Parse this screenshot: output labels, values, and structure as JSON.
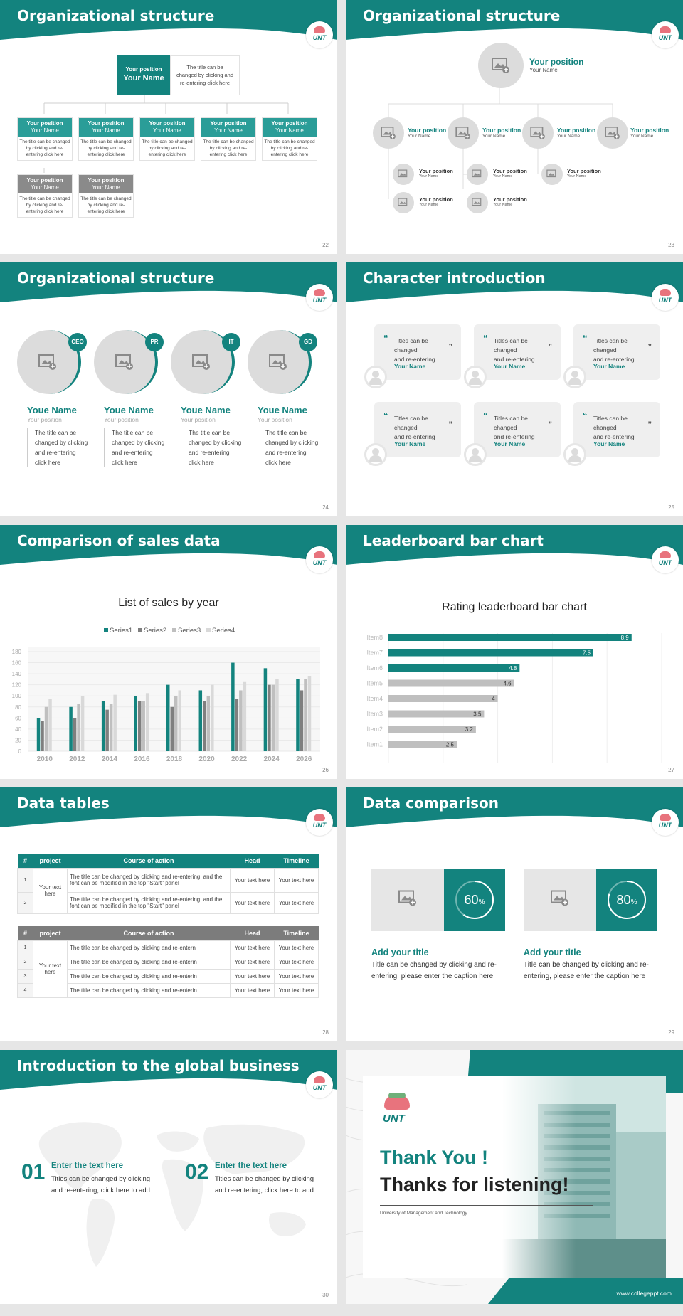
{
  "colors": {
    "teal": "#13837e",
    "band": "#13837e",
    "gray": "#8a8a8a",
    "light": "#c8c8c8"
  },
  "logo_text": "UNT",
  "slides": {
    "s22": {
      "title": "Organizational structure",
      "num": "22",
      "top_box": {
        "role": "Your position",
        "name": "Your Name",
        "desc1": "The title can be",
        "desc2": "changed by clicking and",
        "desc3": "re-entering click here"
      },
      "box_role": "Your position",
      "box_name": "Your Name",
      "box_d1": "The title can be changed",
      "box_d2": "by clicking and re-",
      "box_d3": "entering click here"
    },
    "s23": {
      "title": "Organizational structure",
      "num": "23",
      "top_role": "Your position",
      "top_name": "Your Name",
      "role": "Your position",
      "name": "Your Name"
    },
    "s24": {
      "title": "Organizational structure",
      "num": "24",
      "people": [
        {
          "tag": "CEO",
          "name": "Youe Name",
          "pos": "Your position"
        },
        {
          "tag": "PR",
          "name": "Youe Name",
          "pos": "Your position"
        },
        {
          "tag": "IT",
          "name": "Youe Name",
          "pos": "Your position"
        },
        {
          "tag": "GD",
          "name": "Youe Name",
          "pos": "Your position"
        }
      ],
      "d1": "The title can be",
      "d2": "changed by clicking",
      "d3": "and re-entering",
      "d4": "click here"
    },
    "s25": {
      "title": "Character introduction",
      "num": "25",
      "card_t1": "Titles can be changed",
      "card_t2": "and re-entering",
      "card_name": "Your Name",
      "open_quote": "“",
      "close_quote": "”"
    },
    "s26": {
      "title": "Comparison of sales data",
      "num": "26"
    },
    "s27": {
      "title": "Leaderboard bar chart",
      "num": "27"
    },
    "s28": {
      "title": "Data tables",
      "num": "28",
      "headers": [
        "#",
        "project",
        "Course of action",
        "Head",
        "Timeline"
      ],
      "t1": {
        "project": "Your text here",
        "rows": [
          {
            "idx": "1",
            "action": "The title can be changed by clicking and re-entering, and the font can be modified in the top \"Start\" panel",
            "head": "Your text here",
            "time": "Your text here"
          },
          {
            "idx": "2",
            "action": "The title can be changed by clicking and re-entering, and the font can be modified in the top \"Start\" panel",
            "head": "Your text here",
            "time": "Your text here"
          }
        ]
      },
      "t2": {
        "project": "Your text here",
        "rows": [
          {
            "idx": "1",
            "action": "The title can be changed by clicking and re-entern",
            "head": "Your text here",
            "time": "Your text here"
          },
          {
            "idx": "2",
            "action": "The title can be changed by clicking and re-enterin",
            "head": "Your text here",
            "time": "Your text here"
          },
          {
            "idx": "3",
            "action": "The title can be changed by clicking and re-enterin",
            "head": "Your text here",
            "time": "Your text here"
          },
          {
            "idx": "4",
            "action": "The title can be changed by clicking and re-enterin",
            "head": "Your text here",
            "time": "Your text here"
          }
        ]
      }
    },
    "s29": {
      "title": "Data comparison",
      "num": "29",
      "items": [
        {
          "pct": 60,
          "pct_label": "60",
          "unit": "%",
          "heading": "Add your title",
          "text1": "Title can be changed by clicking and re-",
          "text2": "entering, please enter the caption here"
        },
        {
          "pct": 80,
          "pct_label": "80",
          "unit": "%",
          "heading": "Add your title",
          "text1": "Title can be changed by clicking and re-",
          "text2": "entering, please enter the caption here"
        }
      ]
    },
    "s30": {
      "title": "Introduction to the global business",
      "num": "30",
      "items": [
        {
          "n": "01",
          "heading": "Enter the text here",
          "t1": "Titles can be changed by clicking",
          "t2": "and re-entering, click here to add"
        },
        {
          "n": "02",
          "heading": "Enter the text here",
          "t1": "Titles can be changed by clicking",
          "t2": "and re-entering, click here to add"
        }
      ]
    },
    "s31": {
      "thanks1": "Thank You !",
      "thanks2": "Thanks for listening!",
      "university": "University of Management and Technology",
      "website": "www.collegeppt.com"
    }
  },
  "chart_data": [
    {
      "type": "bar",
      "title": "List of sales by year",
      "categories": [
        "2010",
        "2012",
        "2014",
        "2016",
        "2018",
        "2020",
        "2022",
        "2024",
        "2026"
      ],
      "series": [
        {
          "name": "Series1",
          "color": "#13837e",
          "values": [
            60,
            80,
            90,
            100,
            120,
            110,
            160,
            150,
            130
          ]
        },
        {
          "name": "Series2",
          "color": "#7f7f7f",
          "values": [
            55,
            60,
            75,
            90,
            80,
            90,
            95,
            120,
            110
          ]
        },
        {
          "name": "Series3",
          "color": "#bfbfbf",
          "values": [
            80,
            85,
            85,
            90,
            100,
            100,
            110,
            120,
            130
          ]
        },
        {
          "name": "Series4",
          "color": "#d9d9d9",
          "values": [
            95,
            100,
            102,
            105,
            110,
            120,
            125,
            130,
            135
          ]
        }
      ],
      "ylim": [
        0,
        180
      ],
      "yticks": [
        "0",
        "20",
        "40",
        "60",
        "80",
        "100",
        "120",
        "140",
        "160",
        "180"
      ],
      "legend": "top"
    },
    {
      "type": "bar",
      "orientation": "horizontal",
      "title": "Rating leaderboard bar chart",
      "categories": [
        "Item8",
        "Item7",
        "Item6",
        "Item5",
        "Item4",
        "Item3",
        "Item2",
        "Item1"
      ],
      "values": [
        8.9,
        7.5,
        4.8,
        4.6,
        4,
        3.5,
        3.2,
        2.5
      ],
      "value_labels": [
        "8.9",
        "7.5",
        "4.8",
        "4.6",
        "4",
        "3.5",
        "3.2",
        "2.5"
      ],
      "xlim": [
        0,
        10
      ],
      "xticks": [
        "0",
        "2",
        "4",
        "6",
        "8",
        "10"
      ],
      "top_color": "#13837e",
      "rest_color": "#bfbfbf"
    }
  ]
}
